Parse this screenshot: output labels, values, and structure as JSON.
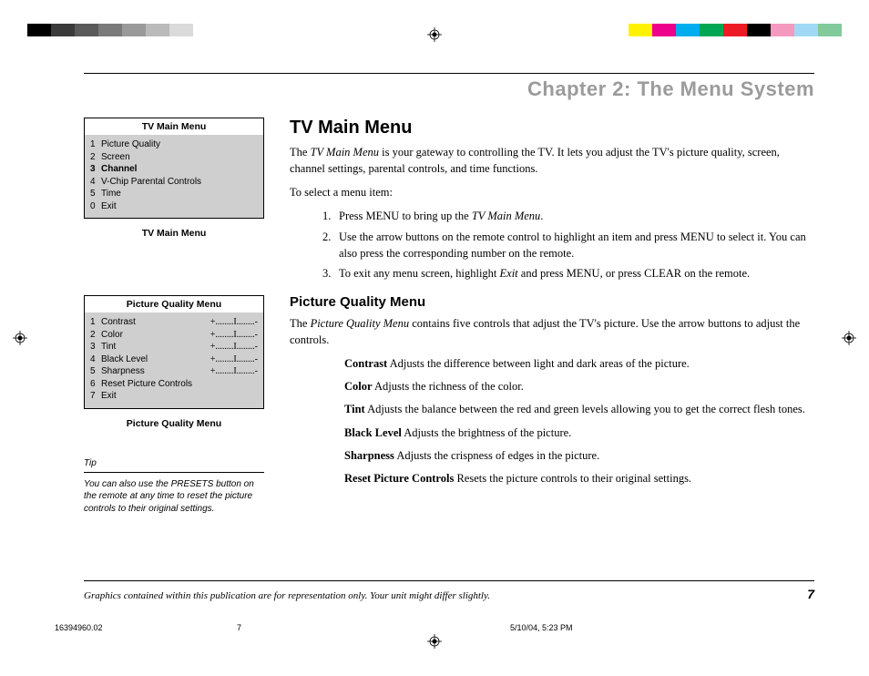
{
  "colorBars": {
    "left": [
      "#000000",
      "#3a3a3a",
      "#5a5a5a",
      "#7a7a7a",
      "#9a9a9a",
      "#bababa",
      "#dadada",
      "#ffffff"
    ],
    "right": [
      "#fff200",
      "#ec008c",
      "#00aeef",
      "#00a651",
      "#ed1c24",
      "#000000",
      "#f49ac1",
      "#a0d9f6",
      "#82ca9c"
    ]
  },
  "chapterTitle": "Chapter 2: The Menu System",
  "sidebar": {
    "menu1": {
      "title": "TV Main Menu",
      "items": [
        {
          "num": "1",
          "label": "Picture Quality",
          "selected": false
        },
        {
          "num": "2",
          "label": "Screen",
          "selected": false
        },
        {
          "num": "3",
          "label": "Channel",
          "selected": true
        },
        {
          "num": "4",
          "label": "V-Chip Parental Controls",
          "selected": false
        },
        {
          "num": "5",
          "label": "Time",
          "selected": false
        },
        {
          "num": "0",
          "label": "Exit",
          "selected": false
        }
      ],
      "caption": "TV Main Menu"
    },
    "menu2": {
      "title": "Picture Quality Menu",
      "items": [
        {
          "num": "1",
          "label": "Contrast",
          "value": "+........I........-"
        },
        {
          "num": "2",
          "label": "Color",
          "value": "+........I........-"
        },
        {
          "num": "3",
          "label": "Tint",
          "value": "+........I........-"
        },
        {
          "num": "4",
          "label": "Black Level",
          "value": "+........I........-"
        },
        {
          "num": "5",
          "label": "Sharpness",
          "value": "+........I........-"
        },
        {
          "num": "6",
          "label": "Reset Picture Controls",
          "value": ""
        },
        {
          "num": "7",
          "label": "Exit",
          "value": ""
        }
      ],
      "caption": "Picture Quality Menu"
    },
    "tip": {
      "label": "Tip",
      "text": "You can also use the PRESETS button on the remote at any time to reset the picture controls to their original settings."
    }
  },
  "main": {
    "section1": {
      "heading": "TV Main Menu",
      "para1_a": "The ",
      "para1_i": "TV Main Menu",
      "para1_b": " is your gateway to controlling the TV.  It lets you adjust the TV's picture quality, screen, channel settings, parental controls, and time functions.",
      "para2": "To select a menu item:",
      "steps": [
        {
          "n": "1.",
          "a": "Press MENU to bring up the ",
          "i": "TV Main Menu",
          "b": "."
        },
        {
          "n": "2.",
          "a": "Use the arrow buttons on the remote control to highlight an item and press MENU to select it. You can also press the corresponding number on the remote.",
          "i": "",
          "b": ""
        },
        {
          "n": "3.",
          "a": "To exit any menu screen, highlight ",
          "i": "Exit",
          "b": " and press MENU, or press CLEAR on the remote."
        }
      ]
    },
    "section2": {
      "heading": "Picture Quality Menu",
      "para1_a": "The ",
      "para1_i": "Picture Quality Menu",
      "para1_b": " contains five controls that adjust the TV's picture. Use the arrow buttons to adjust the controls.",
      "defs": [
        {
          "term": "Contrast",
          "desc": "  Adjusts the difference between light and dark areas of the picture."
        },
        {
          "term": "Color",
          "desc": "  Adjusts the richness of the color."
        },
        {
          "term": "Tint",
          "desc": "  Adjusts the balance between the red and green levels allowing you to get the correct flesh tones."
        },
        {
          "term": "Black Level",
          "desc": "  Adjusts the brightness of the picture."
        },
        {
          "term": "Sharpness",
          "desc": "  Adjusts the crispness of edges in the picture."
        },
        {
          "term": "Reset Picture Controls",
          "desc": "  Resets the picture controls to their original settings."
        }
      ]
    }
  },
  "footer": {
    "disclaimer": "Graphics contained within this publication are for representation only. Your unit might differ slightly.",
    "pageNum": "7"
  },
  "docMeta": {
    "file": "16394960.02",
    "page": "7",
    "date": "5/10/04, 5:23 PM"
  }
}
